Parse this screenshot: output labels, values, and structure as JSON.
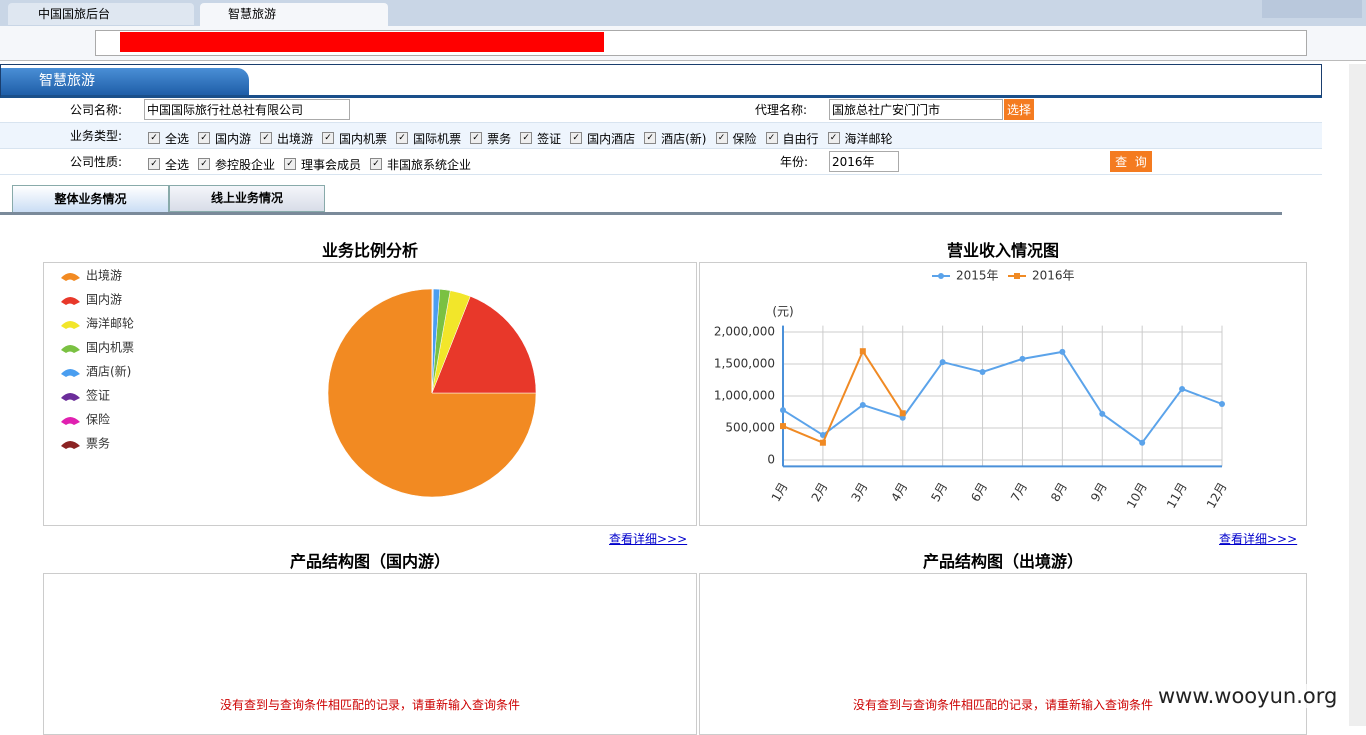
{
  "browser": {
    "tabs": [
      "中国国旅后台",
      "智慧旅游"
    ]
  },
  "header": {
    "title": "智慧旅游"
  },
  "form": {
    "company_label": "公司名称:",
    "company_value": "中国国际旅行社总社有限公司",
    "agent_label": "代理名称:",
    "agent_value": "国旅总社广安门门市",
    "select_button": "选择",
    "business_label": "业务类型:",
    "business_options": [
      "全选",
      "国内游",
      "出境游",
      "国内机票",
      "国际机票",
      "票务",
      "签证",
      "国内酒店",
      "酒店(新)",
      "保险",
      "自由行",
      "海洋邮轮"
    ],
    "nature_label": "公司性质:",
    "nature_options": [
      "全选",
      "参控股企业",
      "理事会成员",
      "非国旅系统企业"
    ],
    "year_label": "年份:",
    "year_value": "2016年",
    "query_button": "查  询"
  },
  "tabs": [
    "整体业务情况",
    "线上业务情况"
  ],
  "chart_data": [
    {
      "type": "pie",
      "title": "业务比例分析",
      "categories": [
        "出境游",
        "国内游",
        "海洋邮轮",
        "国内机票",
        "酒店(新)",
        "签证",
        "保险",
        "票务"
      ],
      "values": [
        75,
        19,
        3.2,
        1.6,
        1,
        0.1,
        0.05,
        0.05
      ],
      "colors": [
        "#f28a22",
        "#e8382a",
        "#f2e62a",
        "#7ac142",
        "#4a9ef0",
        "#6b2d9a",
        "#e020b0",
        "#8b2323"
      ],
      "legend": "top-left"
    },
    {
      "type": "line",
      "title": "营业收入情况图",
      "y_label": "(元)",
      "categories": [
        "1月",
        "2月",
        "3月",
        "4月",
        "5月",
        "6月",
        "7月",
        "8月",
        "9月",
        "10月",
        "11月",
        "12月"
      ],
      "series": [
        {
          "name": "2015年",
          "color": "#5ba3ea",
          "values": [
            780000,
            390000,
            860000,
            660000,
            1530000,
            1375000,
            1580000,
            1690000,
            720000,
            270000,
            1110000,
            875000
          ]
        },
        {
          "name": "2016年",
          "color": "#f08a24",
          "values": [
            530000,
            270000,
            1700000,
            730000,
            null,
            null,
            null,
            null,
            null,
            null,
            null,
            null
          ]
        }
      ],
      "ylim": [
        -100000,
        2100000
      ],
      "yticks": [
        0,
        {
          "value": 500000,
          "label": "500,000"
        },
        {
          "value": 1000000,
          "label": "1,000,000"
        },
        {
          "value": 1500000,
          "label": "1,500,000"
        },
        {
          "value": 2000000,
          "label": "2,000,000"
        }
      ],
      "grid": true,
      "legend": "top"
    }
  ],
  "links": [
    "查看详细>>>",
    "查看详细>>>"
  ],
  "product_panels": [
    {
      "title": "产品结构图（国内游）",
      "message": "没有查到与查询条件相匹配的记录，请重新输入查询条件"
    },
    {
      "title": "产品结构图（出境游）",
      "message": "没有查到与查询条件相匹配的记录，请重新输入查询条件"
    }
  ],
  "watermark": "www.wooyun.org"
}
